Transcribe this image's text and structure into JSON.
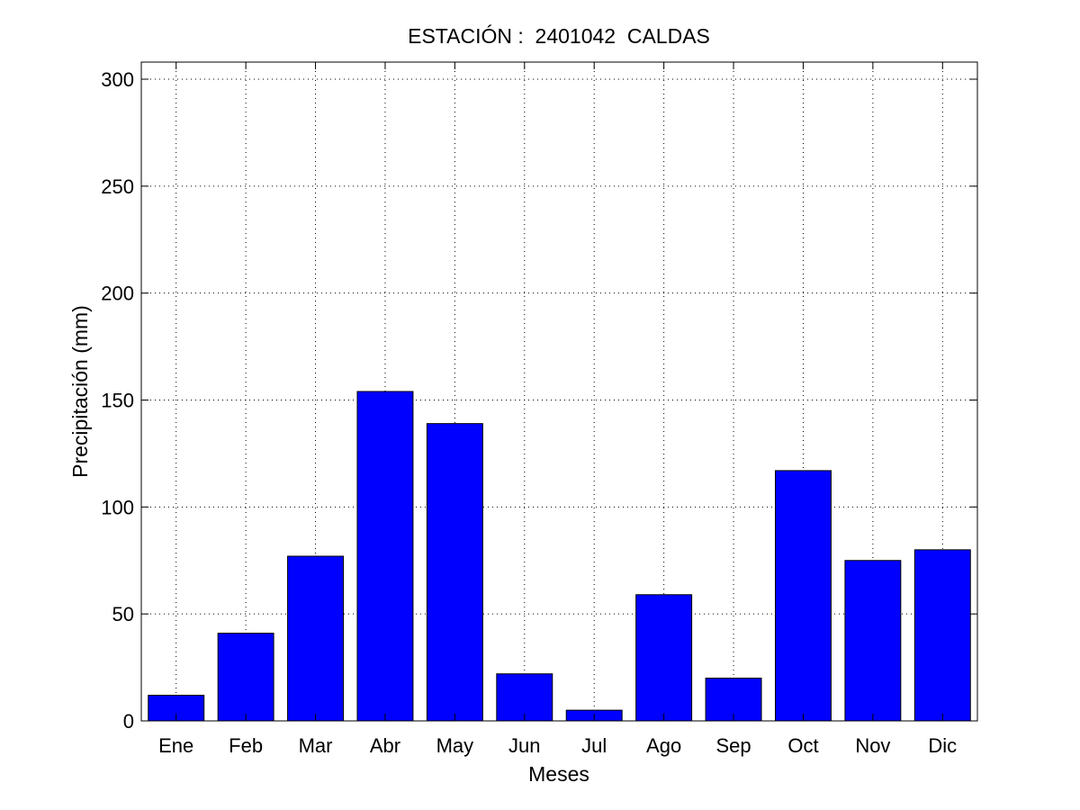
{
  "chart_data": {
    "type": "bar",
    "title": "ESTACIÓN :  2401042  CALDAS",
    "xlabel": "Meses",
    "ylabel": "Precipitación (mm)",
    "categories": [
      "Ene",
      "Feb",
      "Mar",
      "Abr",
      "May",
      "Jun",
      "Jul",
      "Ago",
      "Sep",
      "Oct",
      "Nov",
      "Dic"
    ],
    "values": [
      12,
      41,
      77,
      154,
      139,
      22,
      5,
      59,
      20,
      117,
      75,
      80
    ],
    "ylim": [
      0,
      308
    ],
    "yticks": [
      0,
      50,
      100,
      150,
      200,
      250,
      300
    ],
    "grid": true,
    "bar_color": "#0000ff",
    "edge_color": "#000000"
  }
}
